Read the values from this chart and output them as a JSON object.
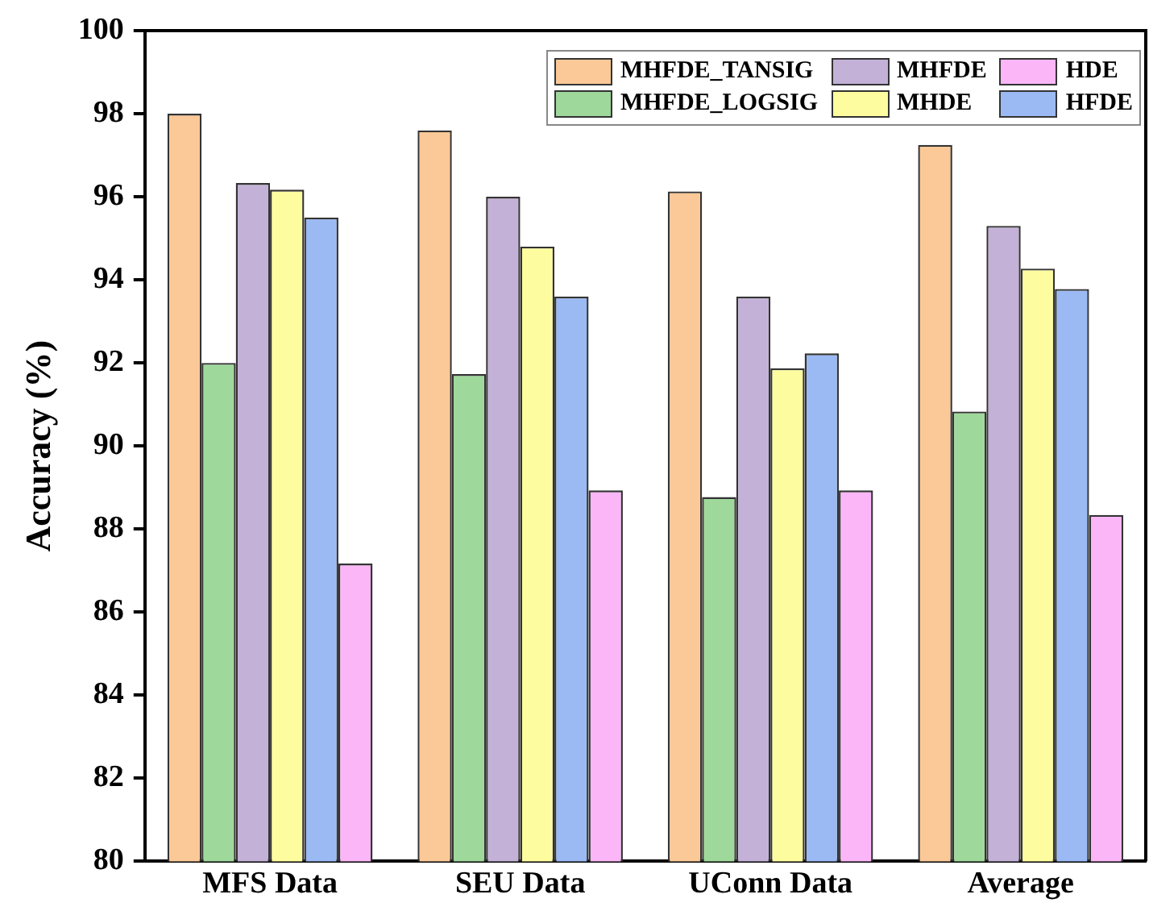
{
  "chart_data": {
    "type": "bar",
    "ylabel": "Accuracy (%)",
    "categories": [
      "MFS Data",
      "SEU Data",
      "UConn Data",
      "Average"
    ],
    "ylim": [
      80,
      100
    ],
    "yticks": [
      80,
      82,
      84,
      86,
      88,
      90,
      92,
      94,
      96,
      98,
      100
    ],
    "legend": "top right",
    "series": [
      {
        "name": "MHFDE_TANSIG",
        "color": "#fbc897",
        "values": [
          98.0,
          97.6,
          96.13,
          97.25
        ]
      },
      {
        "name": "MHFDE_LOGSIG",
        "color": "#9fd89b",
        "values": [
          92.0,
          91.73,
          88.77,
          90.83
        ]
      },
      {
        "name": "MHFDE",
        "color": "#c3b1d7",
        "values": [
          96.33,
          96.0,
          93.6,
          95.3
        ]
      },
      {
        "name": "MHDE",
        "color": "#fdfc9f",
        "values": [
          96.17,
          94.8,
          91.87,
          94.27
        ]
      },
      {
        "name": "HFDE",
        "color": "#9bb9f2",
        "values": [
          95.5,
          93.6,
          92.23,
          93.78
        ]
      },
      {
        "name": "HDE",
        "color": "#fbb6f8",
        "values": [
          87.17,
          88.93,
          88.93,
          88.34
        ]
      }
    ]
  }
}
